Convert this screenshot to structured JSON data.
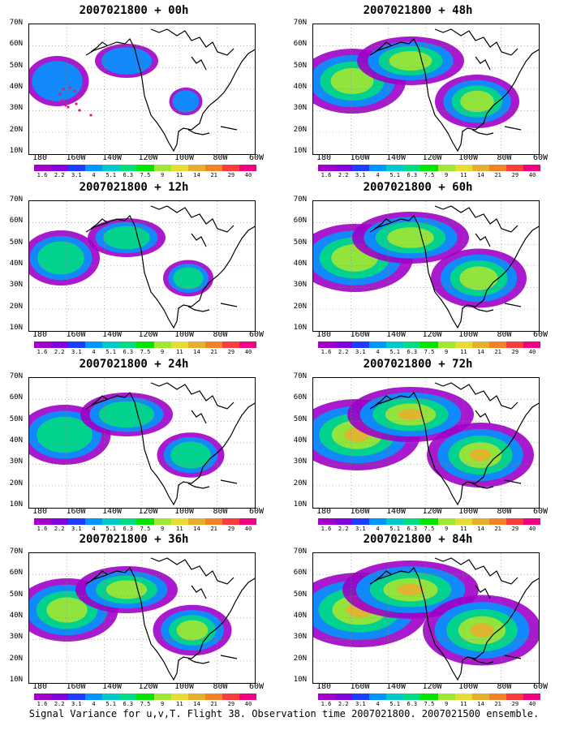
{
  "footer": "Signal Variance for u,v,T. Flight 38. Observation time 2007021800. 2007021500 ensemble.",
  "y_axis_labels": [
    "70N",
    "60N",
    "50N",
    "40N",
    "30N",
    "20N",
    "10N"
  ],
  "x_axis_labels": [
    "180",
    "160W",
    "140W",
    "120W",
    "100W",
    "80W",
    "60W"
  ],
  "colorbar": {
    "labels": [
      "1.6",
      "2.2",
      "3.1",
      "4",
      "5.1",
      "6.3",
      "7.5",
      "9",
      "11",
      "14",
      "21",
      "29",
      "40"
    ],
    "colors": [
      "#a000c8",
      "#8200dc",
      "#1e3cff",
      "#0096ff",
      "#00c8c8",
      "#00dc82",
      "#00e600",
      "#a0e632",
      "#e6dc32",
      "#e6af2d",
      "#f08228",
      "#fa3c3c",
      "#f00082"
    ]
  },
  "panels": [
    {
      "title": "2007021800 + 00h",
      "level": 0.15
    },
    {
      "title": "2007021800 + 48h",
      "level": 0.6
    },
    {
      "title": "2007021800 + 12h",
      "level": 0.3
    },
    {
      "title": "2007021800 + 60h",
      "level": 0.7
    },
    {
      "title": "2007021800 + 24h",
      "level": 0.45
    },
    {
      "title": "2007021800 + 72h",
      "level": 0.8
    },
    {
      "title": "2007021800 + 36h",
      "level": 0.55
    },
    {
      "title": "2007021800 + 84h",
      "level": 0.9
    }
  ]
}
